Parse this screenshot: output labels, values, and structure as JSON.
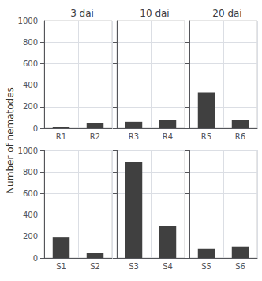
{
  "chart_data": [
    {
      "type": "bar",
      "title": "3 dai",
      "ylabel": "Number of nematodes",
      "categories": [
        "R1",
        "R2"
      ],
      "values": [
        10,
        50
      ],
      "color": "#404040",
      "ylim": [
        0,
        1000
      ],
      "yticks": [
        0,
        200,
        400,
        600,
        800,
        1000
      ],
      "grid": true
    },
    {
      "type": "bar",
      "title": "10 dai",
      "categories": [
        "R3",
        "R4"
      ],
      "values": [
        60,
        80
      ],
      "color": "#404040",
      "ylim": [
        0,
        1000
      ],
      "yticks": [
        0,
        200,
        400,
        600,
        800,
        1000
      ],
      "grid": true,
      "tick_labels": "x"
    },
    {
      "type": "bar",
      "title": "20 dai",
      "categories": [
        "R5",
        "R6"
      ],
      "values": [
        335,
        75
      ],
      "color": "#404040",
      "ylim": [
        0,
        1000
      ],
      "yticks": [
        0,
        200,
        400,
        600,
        800,
        1000
      ],
      "grid": true,
      "tick_labels": "x"
    },
    {
      "type": "bar",
      "categories": [
        "S1",
        "S2"
      ],
      "values": [
        190,
        50
      ],
      "color": "#404040",
      "ylim": [
        0,
        1000
      ],
      "yticks": [
        0,
        200,
        400,
        600,
        800,
        1000
      ],
      "grid": true
    },
    {
      "type": "bar",
      "categories": [
        "S3",
        "S4"
      ],
      "values": [
        890,
        295
      ],
      "color": "#404040",
      "ylim": [
        0,
        1000
      ],
      "yticks": [
        0,
        200,
        400,
        600,
        800,
        1000
      ],
      "grid": true,
      "tick_labels": "x"
    },
    {
      "type": "bar",
      "categories": [
        "S5",
        "S6"
      ],
      "values": [
        90,
        105
      ],
      "color": "#404040",
      "ylim": [
        0,
        1000
      ],
      "yticks": [
        0,
        200,
        400,
        600,
        800,
        1000
      ],
      "grid": true,
      "tick_labels": "x"
    }
  ]
}
